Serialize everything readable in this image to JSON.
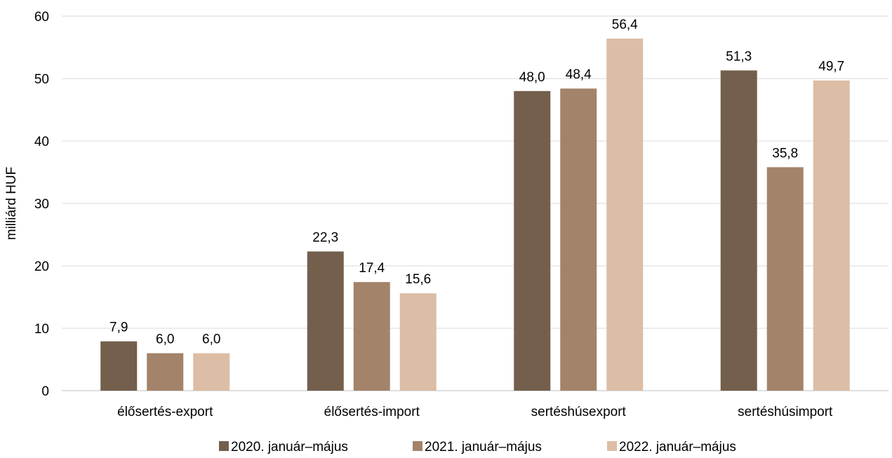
{
  "chart_data": {
    "type": "bar",
    "ylabel": "milliárd HUF",
    "ylim": [
      0,
      60
    ],
    "yticks": [
      0,
      10,
      20,
      30,
      40,
      50,
      60
    ],
    "categories": [
      "élősertés-export",
      "élősertés-import",
      "sertéshúsexport",
      "sertéshúsimport"
    ],
    "series": [
      {
        "name": "2020. január–május",
        "color": "#735f4c",
        "values": [
          7.9,
          22.3,
          48.0,
          51.3
        ]
      },
      {
        "name": "2021.  január–május",
        "color": "#a3846a",
        "values": [
          6.0,
          17.4,
          48.4,
          35.8
        ]
      },
      {
        "name": "2022.  január–május",
        "color": "#dcbda5",
        "values": [
          6.0,
          15.6,
          56.4,
          49.7
        ]
      }
    ],
    "grid": true,
    "legend_position": "bottom"
  }
}
